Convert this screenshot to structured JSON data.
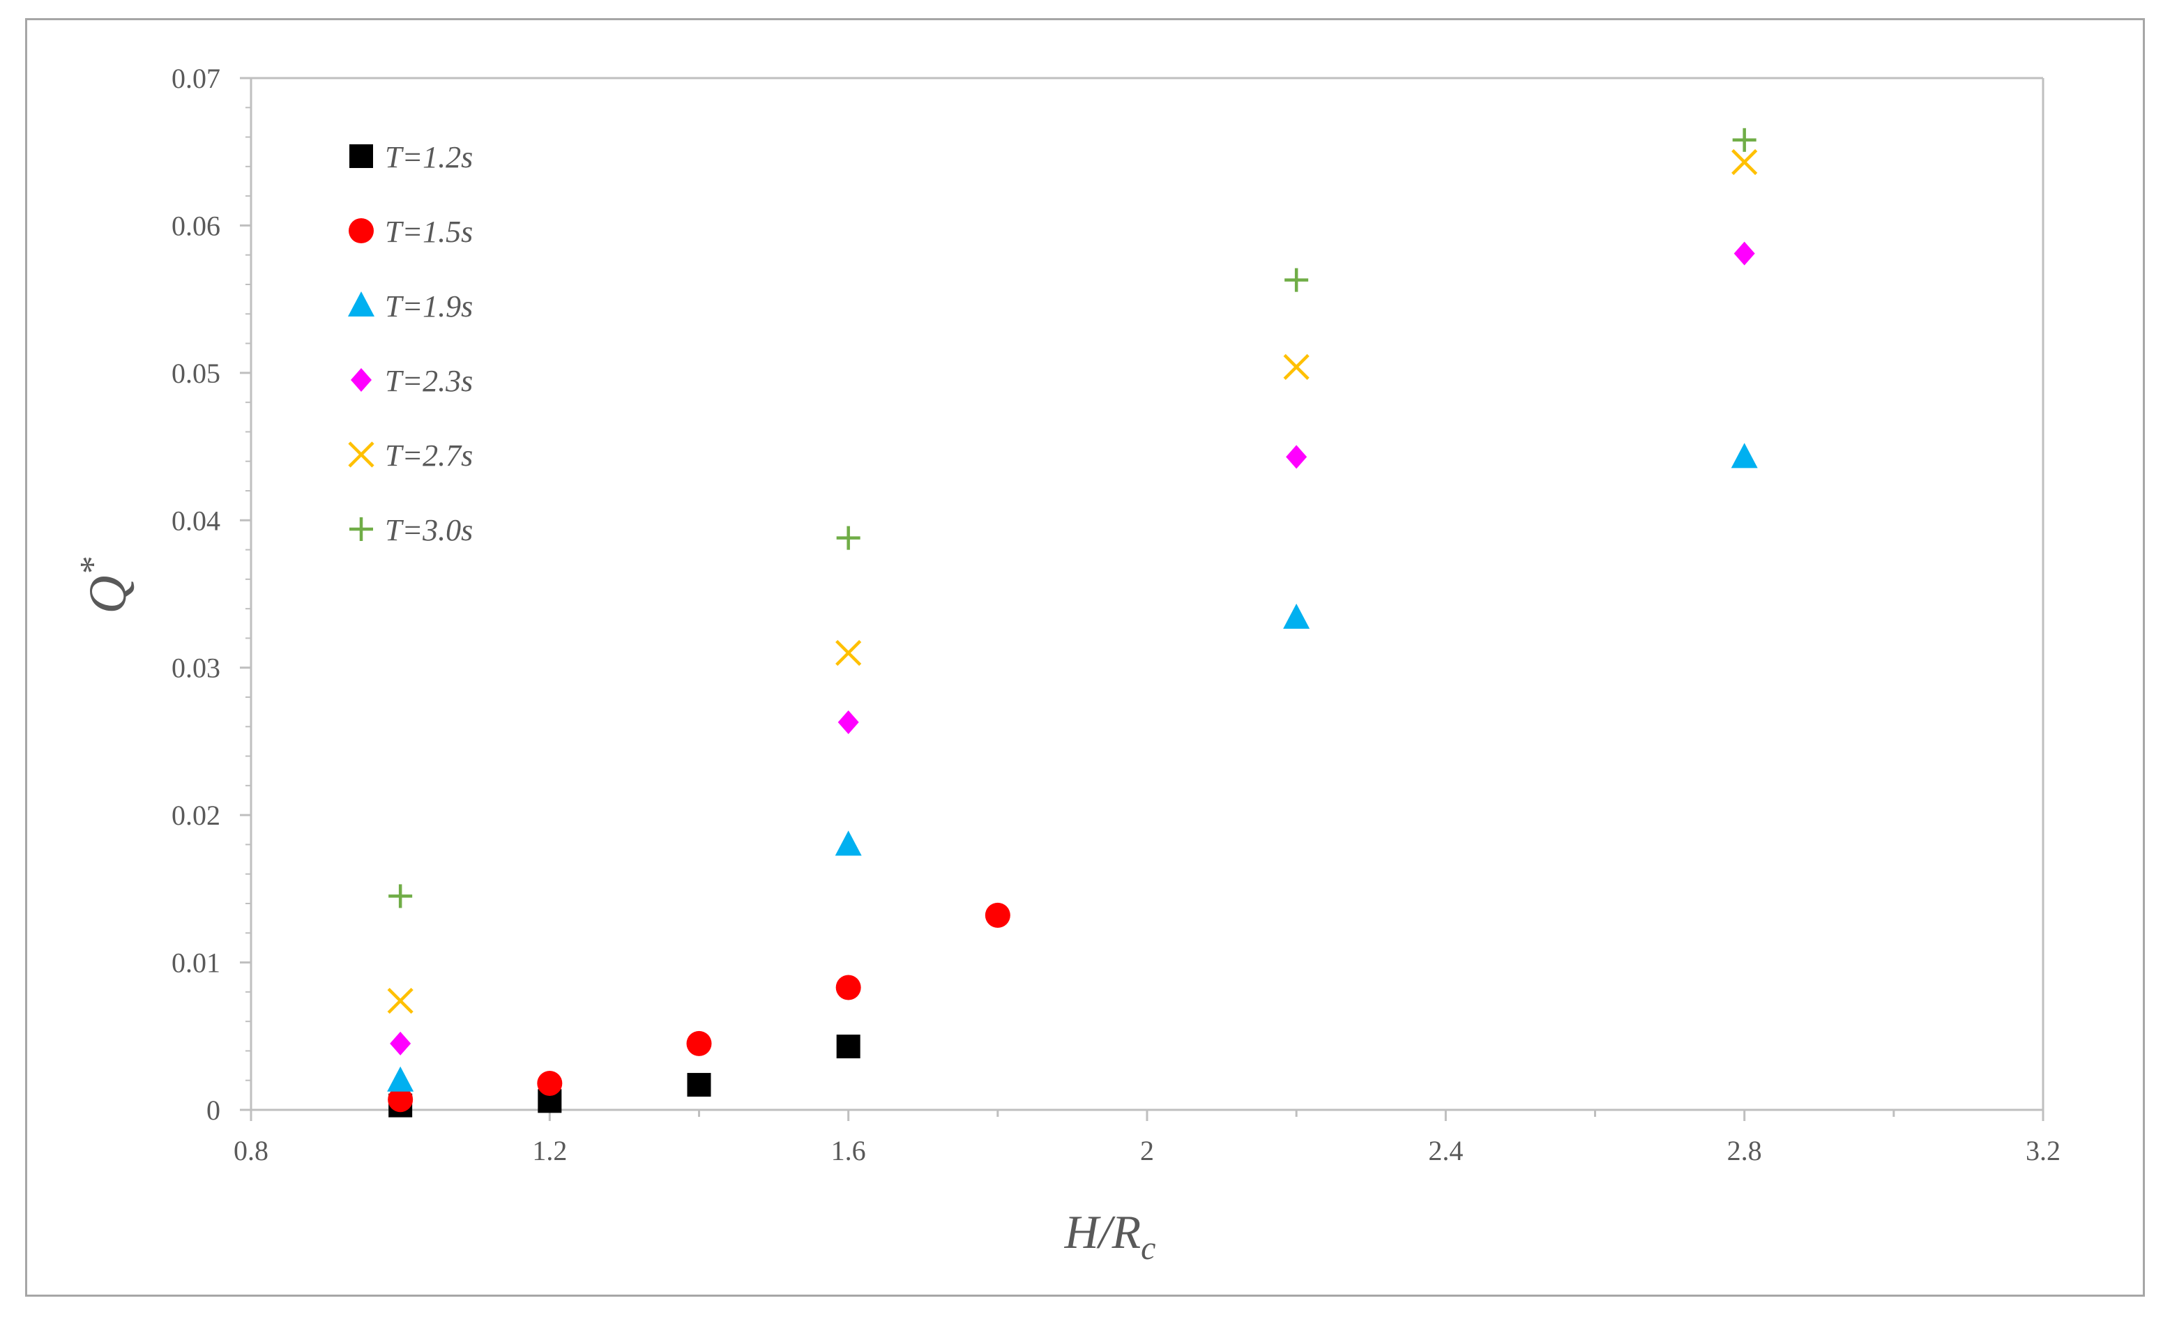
{
  "chart_data": {
    "type": "scatter",
    "xlabel_parts": {
      "main": "H/R",
      "sub": "c"
    },
    "ylabel_parts": {
      "main": "Q",
      "sup": "*"
    },
    "xlim": [
      0.8,
      3.2
    ],
    "ylim": [
      0,
      0.07
    ],
    "x_ticks": [
      0.8,
      1.2,
      1.6,
      2,
      2.4,
      2.8,
      3.2
    ],
    "x_tick_labels": [
      "0.8",
      "1.2",
      "1.6",
      "2",
      "2.4",
      "2.8",
      "3.2"
    ],
    "y_ticks": [
      0,
      0.01,
      0.02,
      0.03,
      0.04,
      0.05,
      0.06,
      0.07
    ],
    "y_tick_labels": [
      "0",
      "0.01",
      "0.02",
      "0.03",
      "0.04",
      "0.05",
      "0.06",
      "0.07"
    ],
    "grid": false,
    "legend_position": "top-left",
    "series": [
      {
        "name": "T=1.2s",
        "marker": "square",
        "color": "#000000",
        "x": [
          1.0,
          1.2,
          1.4,
          1.6
        ],
        "y": [
          0.0003,
          0.0006,
          0.0017,
          0.0043
        ]
      },
      {
        "name": "T=1.5s",
        "marker": "circle",
        "color": "#ff0000",
        "x": [
          1.0,
          1.2,
          1.4,
          1.6,
          1.8
        ],
        "y": [
          0.0007,
          0.0018,
          0.0045,
          0.0083,
          0.0132
        ]
      },
      {
        "name": "T=1.9s",
        "marker": "triangle",
        "color": "#00b0f0",
        "x": [
          1.0,
          1.6,
          2.2,
          2.8
        ],
        "y": [
          0.002,
          0.018,
          0.0334,
          0.0443
        ]
      },
      {
        "name": "T=2.3s",
        "marker": "diamond",
        "color": "#ff00ff",
        "x": [
          1.0,
          1.6,
          2.2,
          2.8
        ],
        "y": [
          0.0045,
          0.0263,
          0.0443,
          0.0581
        ]
      },
      {
        "name": "T=2.7s",
        "marker": "x",
        "color": "#ffc000",
        "x": [
          1.0,
          1.6,
          2.2,
          2.8
        ],
        "y": [
          0.0074,
          0.031,
          0.0504,
          0.0643
        ]
      },
      {
        "name": "T=3.0s",
        "marker": "plus",
        "color": "#70ad47",
        "x": [
          1.0,
          1.6,
          2.2,
          2.8
        ],
        "y": [
          0.0145,
          0.0388,
          0.0563,
          0.0658
        ]
      }
    ]
  }
}
